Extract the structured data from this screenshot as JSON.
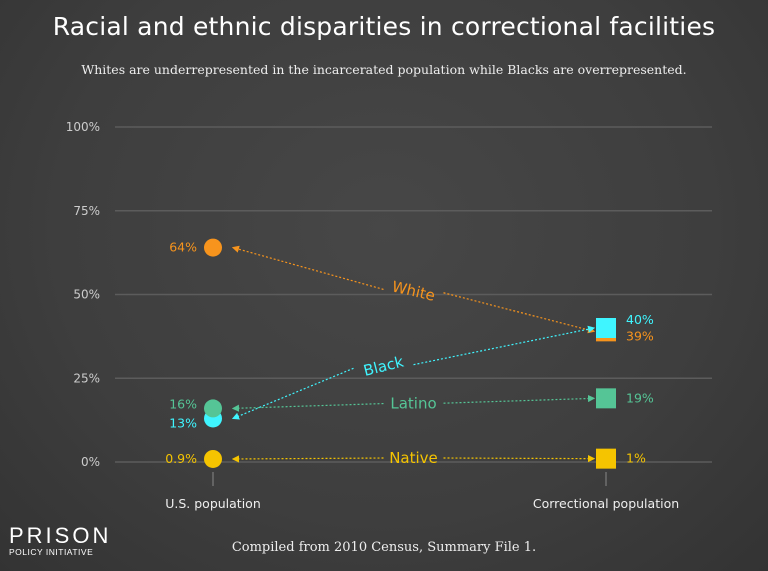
{
  "title": "Racial and ethnic disparities in correctional facilities",
  "subtitle": "Whites are underrepresented in the incarcerated population while Blacks are overrepresented.",
  "footer": "Compiled from 2010 Census, Summary File 1.",
  "logo": {
    "line1": "PRISON",
    "line2": "POLICY INITIATIVE"
  },
  "chart_data": {
    "type": "line",
    "categories": [
      "U.S. population",
      "Correctional population"
    ],
    "ylim": [
      0,
      100
    ],
    "yticks": [
      0,
      25,
      50,
      75,
      100
    ],
    "ytick_labels": [
      "0%",
      "25%",
      "50%",
      "75%",
      "100%"
    ],
    "grid": true,
    "series": [
      {
        "name": "White",
        "values": [
          64,
          39
        ],
        "labels": [
          "64%",
          "39%"
        ],
        "color": "#f7941d"
      },
      {
        "name": "Black",
        "values": [
          13,
          40
        ],
        "labels": [
          "13%",
          "40%"
        ],
        "color": "#3ff5ff"
      },
      {
        "name": "Latino",
        "values": [
          16,
          19
        ],
        "labels": [
          "16%",
          "19%"
        ],
        "color": "#55c596"
      },
      {
        "name": "Native",
        "values": [
          0.9,
          1
        ],
        "labels": [
          "0.9%",
          "1%"
        ],
        "color": "#f5c400"
      }
    ]
  }
}
